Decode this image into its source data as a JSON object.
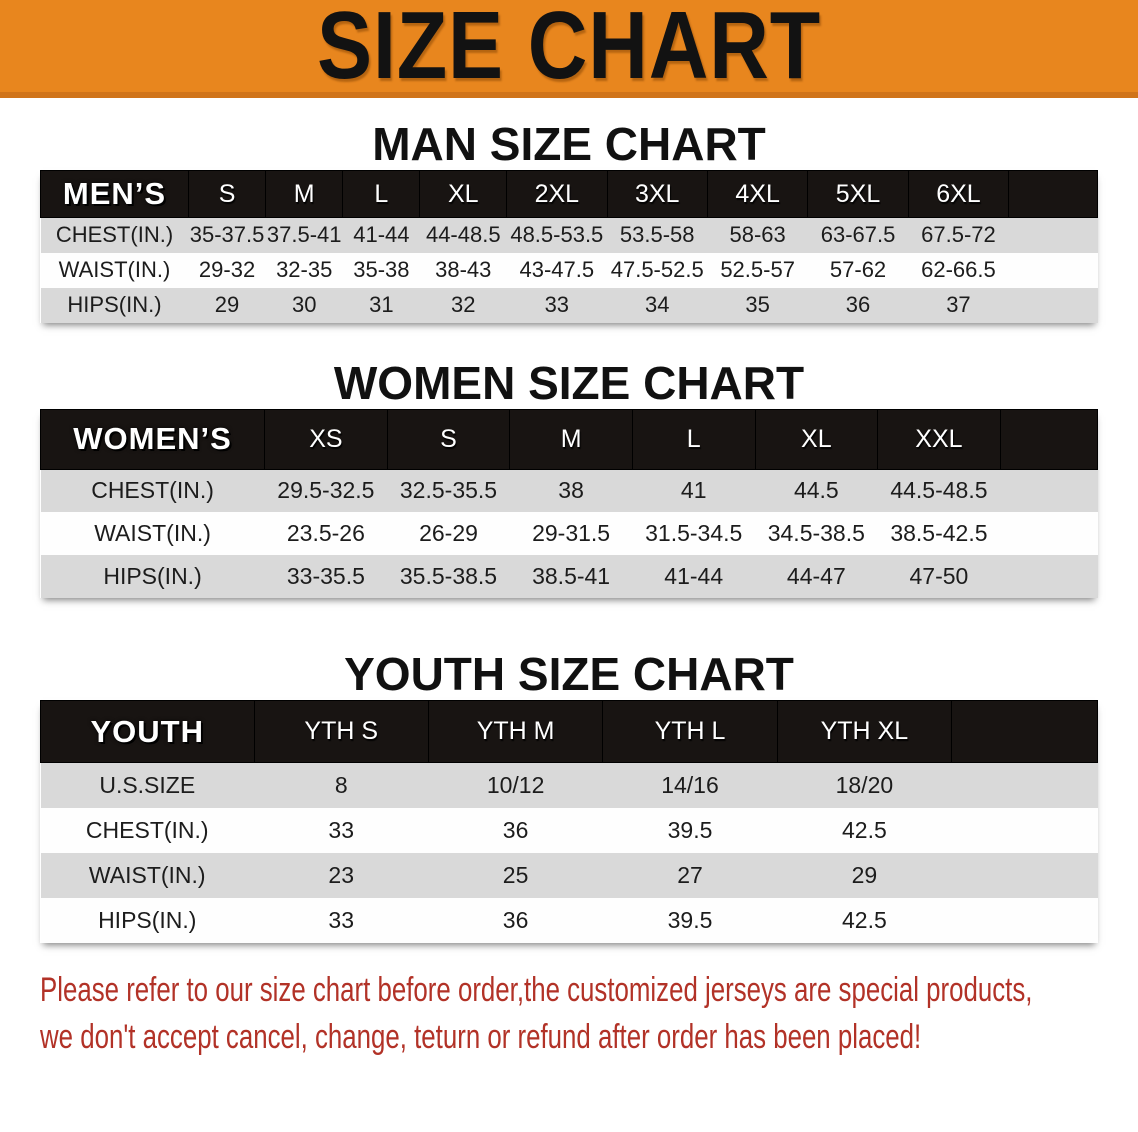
{
  "banner": {
    "title": "SIZE CHART",
    "bg_color": "#E8861E",
    "edge_color": "#D0741A"
  },
  "colors": {
    "table_header_bar": "#181412",
    "row_stripe": "#D9D9D9",
    "footer_text": "#B23227"
  },
  "tables": {
    "men": {
      "heading": "MAN SIZE CHART",
      "header": [
        "MEN’S",
        "S",
        "M",
        "L",
        "XL",
        "2XL",
        "3XL",
        "4XL",
        "5XL",
        "6XL"
      ],
      "rows": [
        [
          "CHEST(IN.)",
          "35-37.5",
          "37.5-41",
          "41-44",
          "44-48.5",
          "48.5-53.5",
          "53.5-58",
          "58-63",
          "63-67.5",
          "67.5-72"
        ],
        [
          "WAIST(IN.)",
          "29-32",
          "32-35",
          "35-38",
          "38-43",
          "43-47.5",
          "47.5-52.5",
          "52.5-57",
          "57-62",
          "62-66.5"
        ],
        [
          "HIPS(IN.)",
          "29",
          "30",
          "31",
          "32",
          "33",
          "34",
          "35",
          "36",
          "37"
        ]
      ]
    },
    "women": {
      "heading": "WOMEN SIZE CHART",
      "header": [
        "WOMEN’S",
        "XS",
        "S",
        "M",
        "L",
        "XL",
        "XXL"
      ],
      "rows": [
        [
          "CHEST(IN.)",
          "29.5-32.5",
          "32.5-35.5",
          "38",
          "41",
          "44.5",
          "44.5-48.5"
        ],
        [
          "WAIST(IN.)",
          "23.5-26",
          "26-29",
          "29-31.5",
          "31.5-34.5",
          "34.5-38.5",
          "38.5-42.5"
        ],
        [
          "HIPS(IN.)",
          "33-35.5",
          "35.5-38.5",
          "38.5-41",
          "41-44",
          "44-47",
          "47-50"
        ]
      ]
    },
    "youth": {
      "heading": "YOUTH SIZE CHART",
      "header": [
        "YOUTH",
        "YTH S",
        "YTH M",
        "YTH L",
        "YTH XL"
      ],
      "rows": [
        [
          "U.S.SIZE",
          "8",
          "10/12",
          "14/16",
          "18/20"
        ],
        [
          "CHEST(IN.)",
          "33",
          "36",
          "39.5",
          "42.5"
        ],
        [
          "WAIST(IN.)",
          "23",
          "25",
          "27",
          "29"
        ],
        [
          "HIPS(IN.)",
          "33",
          "36",
          "39.5",
          "42.5"
        ]
      ]
    }
  },
  "footer": {
    "line1": "Please refer to our size chart before order,the customized jerseys are special products,",
    "line2": "we don't accept cancel, change, teturn or refund after order has been placed!"
  }
}
